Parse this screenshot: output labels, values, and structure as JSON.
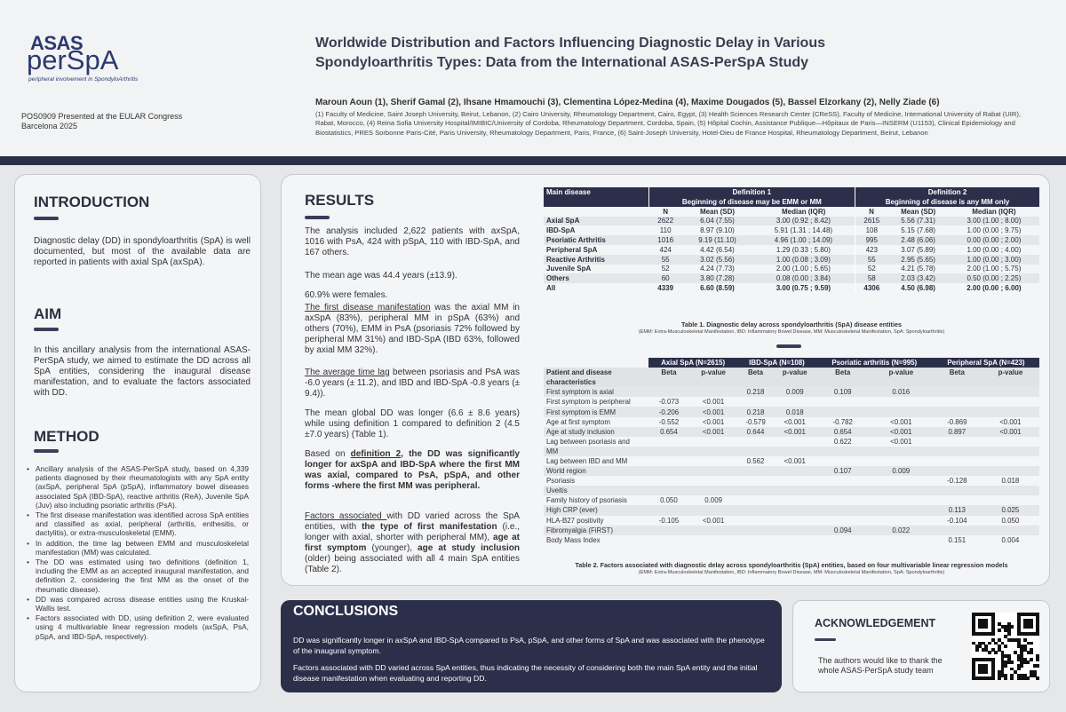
{
  "header": {
    "logo_asas": "ASAS",
    "logo_perspa": "perSpA",
    "logo_tagline": "peripheral involvement in SpondyloArthritis",
    "presented_line1": "POS0909 Presented at the EULAR Congress",
    "presented_line2": "Barcelona 2025",
    "title_line1": "Worldwide Distribution and Factors Influencing Diagnostic Delay in Various",
    "title_line2": "Spondyloarthritis Types: Data from the International ASAS-PerSpA Study",
    "authors": "Maroun Aoun (1), Sherif Gamal (2), Ihsane Hmamouchi (3), Clementina López-Medina (4), Maxime Dougados (5), Bassel Elzorkany (2), Nelly Ziade (6)",
    "affiliations": "(1) Faculty of Medicine, Saint Joseph University, Beirut, Lebanon, (2) Cairo University, Rheumatology Department, Cairo, Egypt, (3) Health Sciences Research Center (CReSS), Faculty of Medicine, International University of Rabat (UIR), Rabat, Morocco, (4) Reina Sofia University Hospital/IMIBIC/University of Cordoba, Rheumatology Department, Cordoba, Spain, (5) Hôpital Cochin, Assistance Publique—Hôpitaux de Paris—INSERM (U1153), Clinical Epidemiology and Biostatistics, PRES Sorbonne Paris-Cité, Paris University, Rheumatology Department, Paris, France, (6) Saint-Joseph University, Hotel-Dieu de France Hospital, Rheumatology Department, Beirut, Lebanon"
  },
  "introduction": {
    "title": "INTRODUCTION",
    "text": "Diagnostic delay (DD) in spondyloarthritis (SpA) is well documented, but most of the available data are reported in patients with axial SpA (axSpA)."
  },
  "aim": {
    "title": "AIM",
    "text": "In this ancillary analysis from the international ASAS-PerSpA study, we aimed to estimate the DD across all SpA entities, considering the inaugural disease manifestation, and to evaluate the factors associated with DD."
  },
  "method": {
    "title": "METHOD",
    "items": [
      "Ancillary analysis of the ASAS-PerSpA study, based on 4,339 patients diagnosed by their rheumatologists with any SpA entity (axSpA, peripheral SpA (pSpA), inflammatory bowel diseases associated SpA (IBD-SpA), reactive arthritis (ReA), Juvenile SpA (Juv) also including psoriatic arthritis (PsA).",
      "The first disease manifestation was identified across SpA entities and classified as axial, peripheral (arthritis, enthesitis, or dactylitis), or extra-musculoskeletal (EMM).",
      "In addition, the time lag between EMM and musculoskeletal manifestation (MM) was calculated.",
      "The DD was estimated using two definitions (definition 1, including the EMM as an accepted inaugural manifestation, and definition 2, considering the first MM as the onset of the rheumatic disease).",
      "DD was compared across disease entities using the Kruskal-Wallis test.",
      "Factors associated with DD, using definition 2, were evaluated using 4 multivariable linear regression models (axSpA, PsA, pSpA, and IBD-SpA, respectively)."
    ]
  },
  "results": {
    "title": "RESULTS",
    "p1": "The analysis included 2,622 patients with axSpA, 1016 with PsA, 424 with pSpA, 110 with IBD-SpA, and 167 others.",
    "p2": "The mean age was 44.4 years (±13.9).",
    "p3": "60.9% were females.",
    "p4_u": "The first disease manifestation",
    "p4_rest": " was the axial MM in axSpA (83%), peripheral MM in pSpA (63%) and others (70%), EMM in PsA (psoriasis 72% followed by peripheral MM 31%) and IBD-SpA (IBD 63%, followed by axial MM 32%).",
    "p5_u": "The average time lag",
    "p5_rest": " between psoriasis and PsA was -6.0 years (± 11.2), and IBD and IBD-SpA -0.8 years (± 9.4)).",
    "p6": "The mean global DD was longer (6.6 ± 8.6 years) while using definition 1 compared to definition 2 (4.5 ±7.0 years) (Table 1).",
    "p7_a": "Based on ",
    "p7_u": "definition 2",
    "p7_b": ", the DD was significantly longer for axSpA and IBD-SpA where the first MM was axial, compared to PsA, pSpA, and other forms -where the first MM was peripheral.",
    "p8_u": "Factors associated ",
    "p8_a": "with DD varied across the SpA entities, with ",
    "p8_b1": "the type of first manifestation",
    "p8_c": " (i.e., longer with axial, shorter with peripheral MM), ",
    "p8_b2": "age at first symptom",
    "p8_d": " (younger), ",
    "p8_b3": "age at study inclusion",
    "p8_e": " (older) being associated with all 4 main SpA entities (Table 2)."
  },
  "table1": {
    "main_disease": "Main disease",
    "def1_title": "Definition 1",
    "def1_sub": "Beginning of disease may be EMM or MM",
    "def2_title": "Definition 2",
    "def2_sub": "Beginning of disease is any MM only",
    "cols": [
      "N",
      "Mean (SD)",
      "Median (IQR)",
      "N",
      "Mean (SD)",
      "Median (IQR)"
    ],
    "rows": [
      [
        "Axial SpA",
        "2622",
        "6.04 (7.55)",
        "3.00 (0.92 ; 8.42)",
        "2615",
        "5.56 (7.31)",
        "3.00 (1.00 ; 8.00)"
      ],
      [
        "IBD-SpA",
        "110",
        "8.97 (9.10)",
        "5.91 (1.31 ; 14.48)",
        "108",
        "5.15 (7.68)",
        "1.00 (0.00 ; 9.75)"
      ],
      [
        "Psoriatic Arthritis",
        "1016",
        "9.19 (11.10)",
        "4.96 (1.00 ; 14.09)",
        "995",
        "2.48 (6.06)",
        "0.00 (0.00 ; 2.00)"
      ],
      [
        "Peripheral SpA",
        "424",
        "4.42 (6.54)",
        "1.29 (0.33 ; 5.80)",
        "423",
        "3.07 (5.89)",
        "1.00 (0.00 ; 4.00)"
      ],
      [
        "Reactive Arthritis",
        "55",
        "3.02 (5.56)",
        "1.00 (0.08 ; 3.09)",
        "55",
        "2.95 (5.65)",
        "1.00 (0.00 ; 3.00)"
      ],
      [
        "Juvenile SpA",
        "52",
        "4.24 (7.73)",
        "2.00 (1.00 ; 5.65)",
        "52",
        "4.21 (5.78)",
        "2.00 (1.00 ; 5.75)"
      ],
      [
        "Others",
        "60",
        "3.80 (7.28)",
        "0.08 (0.00 ; 3.84)",
        "58",
        "2.03 (3.42)",
        "0.50 (0.00 ; 2.25)"
      ],
      [
        "All",
        "4339",
        "6.60 (8.59)",
        "3.00 (0.75 ; 9.59)",
        "4306",
        "4.50 (6.98)",
        "2.00 (0.00 ; 6.00)"
      ]
    ],
    "caption": "Table 1. Diagnostic delay across spondyloarthritis (SpA) disease entities",
    "caption_sub": "(EMM: Extra-Musculoskeletal Manifestation, IBD: Inflammatory Bowel Disease, MM: Musculoskeletal Manifestation, SpA: Spondyloarthritis)"
  },
  "table2": {
    "groups": [
      "Axial SpA (N=2615)",
      "IBD-SpA (N=108)",
      "Psoriatic arthritis (N=995)",
      "Peripheral SpA (N=423)"
    ],
    "char_label_a": "Patient and disease",
    "char_label_b": "characteristics",
    "beta": "Beta",
    "pval": "p-value",
    "rows": [
      [
        "First symptom is axial",
        "",
        "",
        "0.218",
        "0.009",
        "0.109",
        "0.016",
        "",
        ""
      ],
      [
        "First symptom is peripheral",
        "-0.073",
        "<0.001",
        "",
        "",
        "",
        "",
        "",
        ""
      ],
      [
        "First symptom is EMM",
        "-0.206",
        "<0.001",
        "0.218",
        "0.018",
        "",
        "",
        "",
        ""
      ],
      [
        "Age at first symptom",
        "-0.552",
        "<0.001",
        "-0.579",
        "<0.001",
        "-0.782",
        "<0.001",
        "-0.869",
        "<0.001"
      ],
      [
        "Age at study inclusion",
        "0.654",
        "<0.001",
        "0.644",
        "<0.001",
        "0.654",
        "<0.001",
        "0.897",
        "<0.001"
      ],
      [
        "Lag between psoriasis and",
        "",
        "",
        "",
        "",
        "0.622",
        "<0.001",
        "",
        ""
      ],
      [
        "MM",
        "",
        "",
        "",
        "",
        "",
        "",
        "",
        ""
      ],
      [
        "Lag between IBD and MM",
        "",
        "",
        "0.562",
        "<0.001",
        "",
        "",
        "",
        ""
      ],
      [
        "World region",
        "",
        "",
        "",
        "",
        "0.107",
        "0.009",
        "",
        ""
      ],
      [
        "Psoriasis",
        "",
        "",
        "",
        "",
        "",
        "",
        "-0.128",
        "0.018"
      ],
      [
        "Uveitis",
        "",
        "",
        "",
        "",
        "",
        "",
        "",
        ""
      ],
      [
        "Family history of psoriasis",
        "0.050",
        "0.009",
        "",
        "",
        "",
        "",
        "",
        ""
      ],
      [
        "High CRP (ever)",
        "",
        "",
        "",
        "",
        "",
        "",
        "0.113",
        "0.025"
      ],
      [
        "HLA-B27 positivity",
        "-0.105",
        "<0.001",
        "",
        "",
        "",
        "",
        "-0.104",
        "0.050"
      ],
      [
        "Fibromyalgia (FiRST)",
        "",
        "",
        "",
        "",
        "0.094",
        "0.022",
        "",
        ""
      ],
      [
        "Body Mass Index",
        "",
        "",
        "",
        "",
        "",
        "",
        "0.151",
        "0.004"
      ]
    ],
    "caption": "Table 2. Factors associated with diagnostic delay across spondyloarthritis (SpA) entities, based on four multivariable linear regression models",
    "caption_sub": "(EMM: Extra-Musculoskeletal Manifestation, IBD: Inflammatory Bowel Disease, MM: Musculoskeletal Manifestation, SpA: Spondyloarthritis)"
  },
  "conclusions": {
    "title": "CONCLUSIONS",
    "p1": "DD was significantly longer in axSpA and IBD-SpA compared to PsA, pSpA, and other forms of SpA and was associated with the phenotype of the inaugural symptom.",
    "p2": "Factors associated with DD varied across SpA entities, thus indicating the necessity of considering both the main SpA entity and the initial disease manifestation when evaluating and reporting DD."
  },
  "acknowledgement": {
    "title": "ACKNOWLEDGEMENT",
    "text": "The authors would like to thank the whole ASAS-PerSpA study team"
  },
  "colors": {
    "navy": "#2c2f4a",
    "panel": "#f4f5f7",
    "background": "#e6e7e9"
  }
}
